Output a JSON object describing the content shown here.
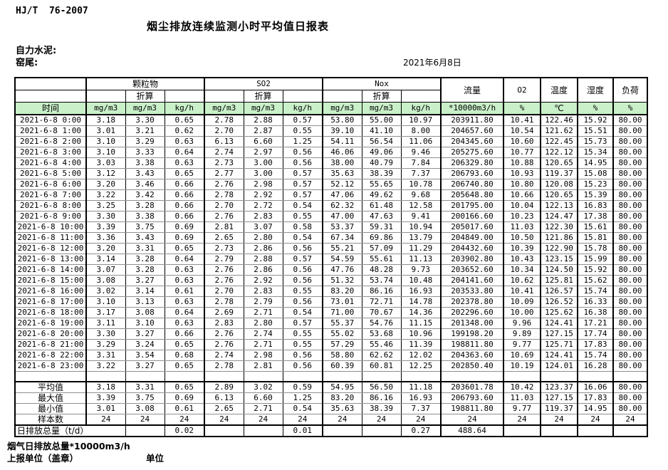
{
  "meta": {
    "standard": "HJ/T  76-2007",
    "title": "烟尘排放连续监测小时平均值日报表",
    "company": "自力水泥:",
    "location": "窑尾:",
    "date": "2021年6月8日"
  },
  "table": {
    "header": {
      "time": "时间",
      "pm": "颗粒物",
      "so2": "SO2",
      "nox": "Nox",
      "converted": "折算",
      "flow": "流量",
      "o2": "O2",
      "temperature": "温度",
      "humidity": "湿度",
      "load": "负荷",
      "units": [
        "mg/m3",
        "mg/m3",
        "kg/h",
        "mg/m3",
        "mg/m3",
        "kg/h",
        "mg/m3",
        "mg/m3",
        "kg/h",
        "*10000m3/h",
        "%",
        "℃",
        "%",
        "%"
      ]
    },
    "rows": [
      {
        "time": "2021-6-8 0:00",
        "values": [
          "3.18",
          "3.30",
          "0.65",
          "2.78",
          "2.88",
          "0.57",
          "53.80",
          "55.00",
          "10.97",
          "203911.80",
          "10.41",
          "122.46",
          "15.92",
          "80.00"
        ]
      },
      {
        "time": "2021-6-8 1:00",
        "values": [
          "3.01",
          "3.21",
          "0.62",
          "2.70",
          "2.87",
          "0.55",
          "39.10",
          "41.10",
          "8.00",
          "204657.60",
          "10.54",
          "121.62",
          "15.51",
          "80.00"
        ]
      },
      {
        "time": "2021-6-8 2:00",
        "values": [
          "3.10",
          "3.29",
          "0.63",
          "6.13",
          "6.60",
          "1.25",
          "54.11",
          "56.54",
          "11.06",
          "204345.60",
          "10.60",
          "122.45",
          "15.73",
          "80.00"
        ]
      },
      {
        "time": "2021-6-8 3:00",
        "values": [
          "3.10",
          "3.33",
          "0.64",
          "2.74",
          "2.97",
          "0.56",
          "46.06",
          "49.06",
          "9.46",
          "205275.60",
          "10.77",
          "122.12",
          "15.34",
          "80.00"
        ]
      },
      {
        "time": "2021-6-8 4:00",
        "values": [
          "3.03",
          "3.38",
          "0.63",
          "2.73",
          "3.00",
          "0.56",
          "38.00",
          "40.79",
          "7.84",
          "206329.80",
          "10.88",
          "120.65",
          "14.95",
          "80.00"
        ]
      },
      {
        "time": "2021-6-8 5:00",
        "values": [
          "3.12",
          "3.43",
          "0.65",
          "2.77",
          "3.00",
          "0.57",
          "35.63",
          "38.39",
          "7.37",
          "206793.60",
          "10.93",
          "119.37",
          "15.08",
          "80.00"
        ]
      },
      {
        "time": "2021-6-8 6:00",
        "values": [
          "3.20",
          "3.46",
          "0.66",
          "2.76",
          "2.98",
          "0.57",
          "52.12",
          "55.65",
          "10.78",
          "206740.80",
          "10.80",
          "120.08",
          "15.23",
          "80.00"
        ]
      },
      {
        "time": "2021-6-8 7:00",
        "values": [
          "3.22",
          "3.42",
          "0.66",
          "2.78",
          "2.92",
          "0.57",
          "47.06",
          "49.62",
          "9.68",
          "205648.80",
          "10.66",
          "120.65",
          "15.39",
          "80.00"
        ]
      },
      {
        "time": "2021-6-8 8:00",
        "values": [
          "3.25",
          "3.28",
          "0.66",
          "2.70",
          "2.72",
          "0.54",
          "62.32",
          "61.48",
          "12.58",
          "201795.00",
          "10.04",
          "122.13",
          "16.83",
          "80.00"
        ]
      },
      {
        "time": "2021-6-8 9:00",
        "values": [
          "3.30",
          "3.38",
          "0.66",
          "2.76",
          "2.83",
          "0.55",
          "47.00",
          "47.63",
          "9.41",
          "200166.60",
          "10.23",
          "124.47",
          "17.38",
          "80.00"
        ]
      },
      {
        "time": "2021-6-8 10:00",
        "values": [
          "3.39",
          "3.75",
          "0.69",
          "2.81",
          "3.07",
          "0.58",
          "53.37",
          "59.31",
          "10.94",
          "205017.60",
          "11.03",
          "122.30",
          "15.61",
          "80.00"
        ]
      },
      {
        "time": "2021-6-8 11:00",
        "values": [
          "3.36",
          "3.43",
          "0.69",
          "2.65",
          "2.80",
          "0.54",
          "67.34",
          "69.86",
          "13.79",
          "204849.00",
          "10.50",
          "121.86",
          "15.81",
          "80.00"
        ]
      },
      {
        "time": "2021-6-8 12:00",
        "values": [
          "3.20",
          "3.31",
          "0.65",
          "2.73",
          "2.86",
          "0.56",
          "55.21",
          "57.09",
          "11.29",
          "204432.60",
          "10.39",
          "122.90",
          "15.78",
          "80.00"
        ]
      },
      {
        "time": "2021-6-8 13:00",
        "values": [
          "3.14",
          "3.28",
          "0.64",
          "2.79",
          "2.88",
          "0.57",
          "54.59",
          "55.61",
          "11.13",
          "203902.80",
          "10.43",
          "123.15",
          "15.99",
          "80.00"
        ]
      },
      {
        "time": "2021-6-8 14:00",
        "values": [
          "3.07",
          "3.28",
          "0.63",
          "2.76",
          "2.86",
          "0.56",
          "47.76",
          "48.28",
          "9.73",
          "203652.60",
          "10.34",
          "124.50",
          "15.92",
          "80.00"
        ]
      },
      {
        "time": "2021-6-8 15:00",
        "values": [
          "3.08",
          "3.27",
          "0.63",
          "2.76",
          "2.92",
          "0.56",
          "51.32",
          "53.74",
          "10.48",
          "204141.60",
          "10.62",
          "125.81",
          "15.62",
          "80.00"
        ]
      },
      {
        "time": "2021-6-8 16:00",
        "values": [
          "3.02",
          "3.14",
          "0.61",
          "2.70",
          "2.83",
          "0.55",
          "83.20",
          "86.16",
          "16.93",
          "203533.80",
          "10.41",
          "126.57",
          "15.74",
          "80.00"
        ]
      },
      {
        "time": "2021-6-8 17:00",
        "values": [
          "3.10",
          "3.13",
          "0.63",
          "2.78",
          "2.79",
          "0.56",
          "73.01",
          "72.71",
          "14.78",
          "202378.80",
          "10.09",
          "126.52",
          "16.33",
          "80.00"
        ]
      },
      {
        "time": "2021-6-8 18:00",
        "values": [
          "3.17",
          "3.08",
          "0.64",
          "2.69",
          "2.71",
          "0.54",
          "71.00",
          "70.67",
          "14.36",
          "202296.60",
          "10.00",
          "125.62",
          "16.38",
          "80.00"
        ]
      },
      {
        "time": "2021-6-8 19:00",
        "values": [
          "3.11",
          "3.10",
          "0.63",
          "2.83",
          "2.80",
          "0.57",
          "55.37",
          "54.76",
          "11.15",
          "201348.00",
          "9.96",
          "124.41",
          "17.21",
          "80.00"
        ]
      },
      {
        "time": "2021-6-8 20:00",
        "values": [
          "3.30",
          "3.27",
          "0.66",
          "2.76",
          "2.74",
          "0.55",
          "55.02",
          "53.68",
          "10.96",
          "199198.20",
          "9.89",
          "127.15",
          "17.74",
          "80.00"
        ]
      },
      {
        "time": "2021-6-8 21:00",
        "values": [
          "3.29",
          "3.24",
          "0.65",
          "2.76",
          "2.71",
          "0.55",
          "57.29",
          "55.46",
          "11.39",
          "198811.80",
          "9.77",
          "125.71",
          "17.83",
          "80.00"
        ]
      },
      {
        "time": "2021-6-8 22:00",
        "values": [
          "3.31",
          "3.54",
          "0.68",
          "2.74",
          "2.98",
          "0.56",
          "58.80",
          "62.62",
          "12.02",
          "204363.60",
          "10.69",
          "124.41",
          "15.74",
          "80.00"
        ]
      },
      {
        "time": "2021-6-8 23:00",
        "values": [
          "3.22",
          "3.27",
          "0.65",
          "2.78",
          "2.81",
          "0.56",
          "60.39",
          "60.81",
          "12.25",
          "202850.40",
          "10.19",
          "124.01",
          "16.28",
          "80.00"
        ]
      }
    ],
    "summary": [
      {
        "label": "平均值",
        "values": [
          "3.18",
          "3.31",
          "0.65",
          "2.89",
          "3.02",
          "0.59",
          "54.95",
          "56.50",
          "11.18",
          "203601.78",
          "10.42",
          "123.37",
          "16.06",
          "80.00"
        ]
      },
      {
        "label": "最大值",
        "values": [
          "3.39",
          "3.75",
          "0.69",
          "6.13",
          "6.60",
          "1.25",
          "83.20",
          "86.16",
          "16.93",
          "206793.60",
          "11.03",
          "127.15",
          "17.83",
          "80.00"
        ]
      },
      {
        "label": "最小值",
        "values": [
          "3.01",
          "3.08",
          "0.61",
          "2.65",
          "2.71",
          "0.54",
          "35.63",
          "38.39",
          "7.37",
          "198811.80",
          "9.77",
          "119.37",
          "14.95",
          "80.00"
        ]
      },
      {
        "label": "样本数",
        "values": [
          "24",
          "24",
          "24",
          "24",
          "24",
          "24",
          "24",
          "24",
          "24",
          "24",
          "24",
          "24",
          "24",
          "24"
        ]
      }
    ],
    "daily_total": {
      "label": "日排放总量（t/d）",
      "values": [
        "",
        "0.02",
        "",
        "",
        "0.01",
        "",
        "",
        "0.27",
        "488.64",
        "",
        "",
        "",
        ""
      ]
    }
  },
  "footer": {
    "flow_note": "烟气日排放总量*10000m3/h",
    "report_unit": "上报单位（盖章）",
    "unit_label": "单位"
  },
  "colors": {
    "header_green": "#c9f0c9",
    "border": "#000000"
  }
}
